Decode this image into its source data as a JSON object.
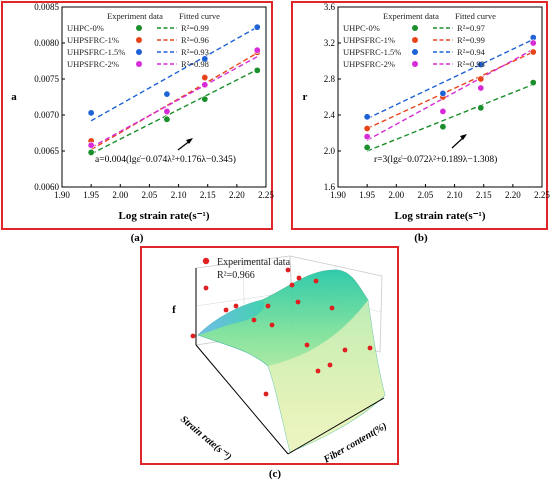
{
  "chart_data": [
    {
      "panel": "(a)",
      "type": "scatter",
      "xlabel": "Log strain rate(s⁻¹)",
      "ylabel": "a",
      "xlim": [
        1.9,
        2.25
      ],
      "ylim": [
        0.006,
        0.0085
      ],
      "xticks": [
        "1.90",
        "1.95",
        "2.00",
        "2.05",
        "2.10",
        "2.15",
        "2.20",
        "2.25"
      ],
      "yticks": [
        "0.0060",
        "0.0065",
        "0.0070",
        "0.0075",
        "0.0080",
        "0.0085"
      ],
      "legend_headers": [
        "Experiment data",
        "Fitted curve"
      ],
      "series": [
        {
          "name": "UHPC-0%",
          "color": "#1a8f2c",
          "fit": "R²=0.99",
          "x": [
            1.95,
            2.08,
            2.145,
            2.235
          ],
          "y": [
            0.00648,
            0.00694,
            0.00722,
            0.00762
          ],
          "line": [
            0.00646,
            0.00763
          ]
        },
        {
          "name": "UHPSFRC-1%",
          "color": "#e8441c",
          "fit": "R²=0.96",
          "x": [
            1.95,
            2.08,
            2.145,
            2.235
          ],
          "y": [
            0.00664,
            0.00704,
            0.00752,
            0.00787
          ],
          "line": [
            0.00652,
            0.00786
          ]
        },
        {
          "name": "UHPSFRC-1.5%",
          "color": "#1f62d6",
          "fit": "R²=0.93",
          "x": [
            1.95,
            2.08,
            2.145,
            2.235
          ],
          "y": [
            0.00703,
            0.00729,
            0.00778,
            0.00822
          ],
          "line": [
            0.00692,
            0.00822
          ]
        },
        {
          "name": "UHPSFRC-2%",
          "color": "#d62bd6",
          "fit": "R²=0.98",
          "x": [
            1.95,
            2.08,
            2.145,
            2.235
          ],
          "y": [
            0.00658,
            0.00705,
            0.00742,
            0.0079
          ],
          "line": [
            0.00655,
            0.00781
          ]
        }
      ],
      "annotation": "a=0.004(lgε̇−0.074λ²+0.176λ−0.345)"
    },
    {
      "panel": "(b)",
      "type": "scatter",
      "xlabel": "Log strain rate(s⁻¹)",
      "ylabel": "r",
      "xlim": [
        1.9,
        2.25
      ],
      "ylim": [
        1.6,
        3.6
      ],
      "xticks": [
        "1.90",
        "1.95",
        "2.00",
        "2.05",
        "2.10",
        "2.15",
        "2.20",
        "2.25"
      ],
      "yticks": [
        "1.6",
        "2.0",
        "2.4",
        "2.8",
        "3.2",
        "3.6"
      ],
      "legend_headers": [
        "Experiment data",
        "Fitted curve"
      ],
      "series": [
        {
          "name": "UHPC-0%",
          "color": "#1a8f2c",
          "fit": "R²=0.97",
          "x": [
            1.95,
            2.08,
            2.145,
            2.235
          ],
          "y": [
            2.04,
            2.27,
            2.48,
            2.76
          ],
          "line": [
            2.0,
            2.74
          ]
        },
        {
          "name": "UHPSFRC-1%",
          "color": "#e8441c",
          "fit": "R²=0.99",
          "x": [
            1.95,
            2.08,
            2.145,
            2.235
          ],
          "y": [
            2.25,
            2.6,
            2.8,
            3.1
          ],
          "line": [
            2.25,
            3.1
          ]
        },
        {
          "name": "UHPSFRC-1.5%",
          "color": "#1f62d6",
          "fit": "R²=0.94",
          "x": [
            1.95,
            2.08,
            2.145,
            2.235
          ],
          "y": [
            2.38,
            2.64,
            2.96,
            3.26
          ],
          "line": [
            2.36,
            3.24
          ]
        },
        {
          "name": "UHPSFRC-2%",
          "color": "#d62bd6",
          "fit": "R²=0.93",
          "x": [
            1.95,
            2.08,
            2.145,
            2.235
          ],
          "y": [
            2.16,
            2.44,
            2.7,
            3.2
          ],
          "line": [
            2.12,
            3.13
          ]
        }
      ],
      "annotation": "r=3(lgε̇−0.072λ²+0.189λ−1.308)"
    },
    {
      "panel": "(c)",
      "type": "surface",
      "zlabel": "f",
      "xlabel": "Strain rate(s⁻¹)",
      "ylabel": "Fiber content(%)",
      "legend": "Experimental data",
      "r2": "R²=0.966"
    }
  ]
}
